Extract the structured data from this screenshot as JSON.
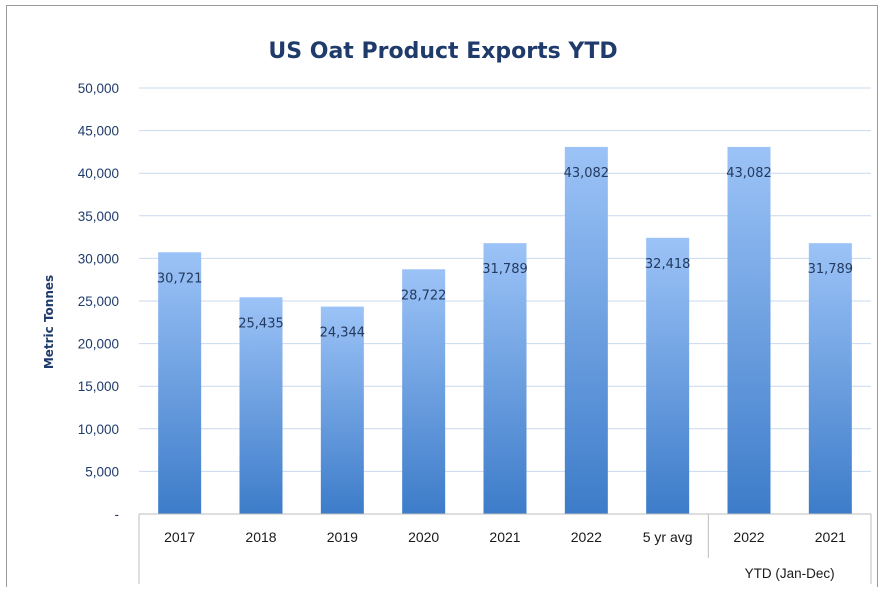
{
  "chart_data": {
    "type": "bar",
    "title": "US Oat Product Exports YTD",
    "ylabel": "Metric Tonnes",
    "xlabel": "",
    "ylim": [
      0,
      50000
    ],
    "ytick_labels": [
      "-",
      "5,000",
      "10,000",
      "15,000",
      "20,000",
      "25,000",
      "30,000",
      "35,000",
      "40,000",
      "45,000",
      "50,000"
    ],
    "ytick_values": [
      0,
      5000,
      10000,
      15000,
      20000,
      25000,
      30000,
      35000,
      40000,
      45000,
      50000
    ],
    "categories": [
      "2017",
      "2018",
      "2019",
      "2020",
      "2021",
      "2022",
      "5 yr avg",
      "2022",
      "2021"
    ],
    "values": [
      30721,
      25435,
      24344,
      28722,
      31789,
      43082,
      32418,
      43082,
      31789
    ],
    "value_labels": [
      "30,721",
      "25,435",
      "24,344",
      "28,722",
      "31,789",
      "43,082",
      "32,418",
      "43,082",
      "31,789"
    ],
    "category_group_label": "YTD (Jan-Dec)",
    "grid": true,
    "legend": "none",
    "colors": {
      "bar_top": "#9cc3f7",
      "bar_bottom": "#3d7cc9",
      "grid": "#c8d9ee",
      "title": "#1f3b6b"
    }
  }
}
